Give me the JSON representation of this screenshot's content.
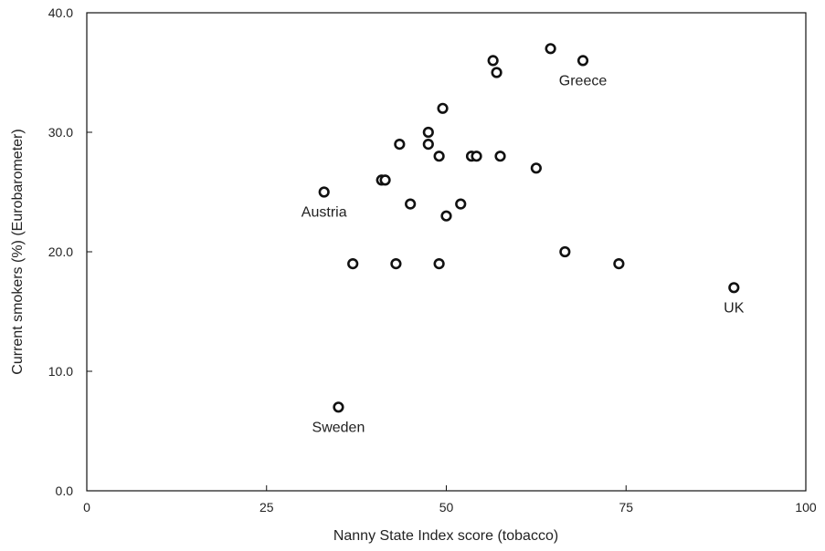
{
  "chart_data": {
    "type": "scatter",
    "title": "",
    "xlabel": "Nanny State Index score (tobacco)",
    "ylabel": "Current smokers (%) (Eurobarometer)",
    "xlim": [
      0,
      100
    ],
    "ylim": [
      0,
      40
    ],
    "x_ticks": [
      "0",
      "25",
      "50",
      "75",
      "100"
    ],
    "y_ticks": [
      "0.0",
      "10.0",
      "20.0",
      "30.0",
      "40.0"
    ],
    "grid": false,
    "legend": "none",
    "marker_color": "#111111",
    "points": [
      {
        "x": 33,
        "y": 25,
        "label": "Austria"
      },
      {
        "x": 35,
        "y": 7,
        "label": "Sweden"
      },
      {
        "x": 37,
        "y": 19
      },
      {
        "x": 41,
        "y": 26
      },
      {
        "x": 41.5,
        "y": 26
      },
      {
        "x": 43,
        "y": 19
      },
      {
        "x": 43.5,
        "y": 29
      },
      {
        "x": 45,
        "y": 24
      },
      {
        "x": 47.5,
        "y": 30
      },
      {
        "x": 47.5,
        "y": 29
      },
      {
        "x": 49,
        "y": 28
      },
      {
        "x": 49,
        "y": 19
      },
      {
        "x": 49.5,
        "y": 32
      },
      {
        "x": 50,
        "y": 23
      },
      {
        "x": 52,
        "y": 24
      },
      {
        "x": 53.5,
        "y": 28
      },
      {
        "x": 54.2,
        "y": 28
      },
      {
        "x": 56.5,
        "y": 36
      },
      {
        "x": 57,
        "y": 35
      },
      {
        "x": 57.5,
        "y": 28
      },
      {
        "x": 62.5,
        "y": 27
      },
      {
        "x": 64.5,
        "y": 37
      },
      {
        "x": 66.5,
        "y": 20
      },
      {
        "x": 69,
        "y": 36,
        "label": "Greece"
      },
      {
        "x": 74,
        "y": 19
      },
      {
        "x": 90,
        "y": 17,
        "label": "UK"
      }
    ]
  }
}
